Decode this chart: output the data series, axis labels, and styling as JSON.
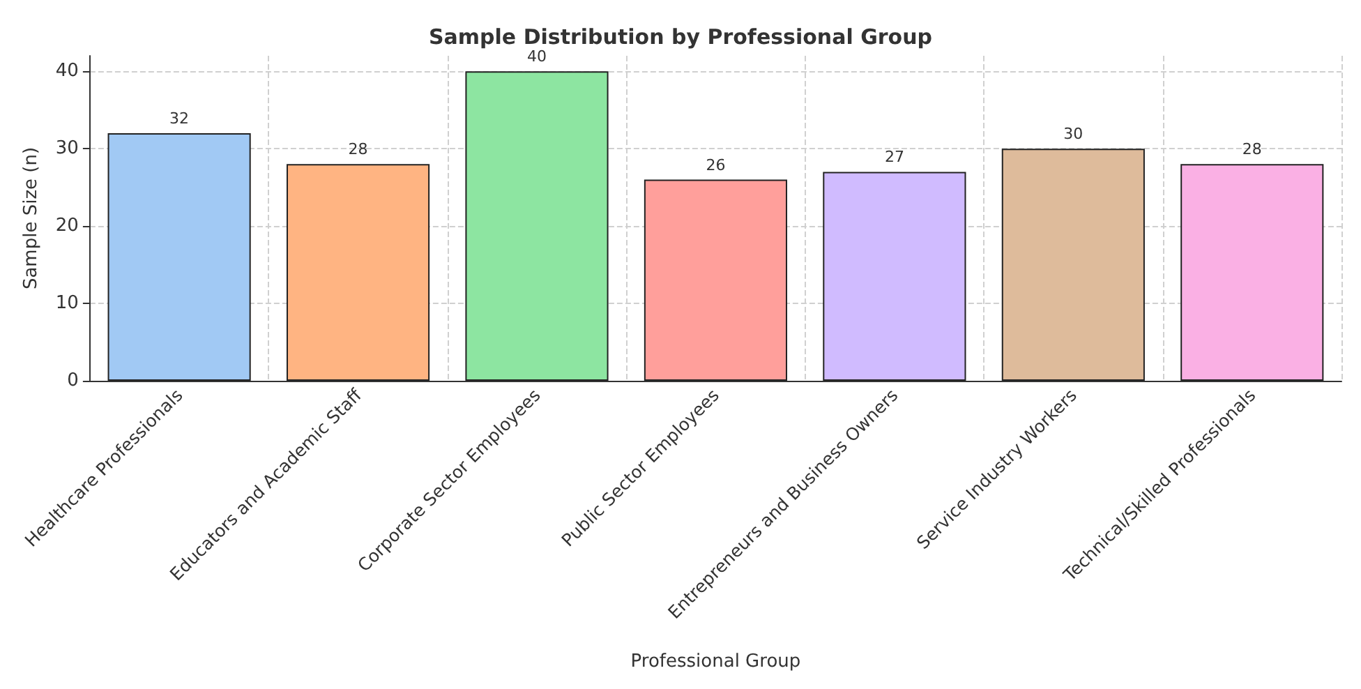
{
  "chart_data": {
    "type": "bar",
    "title": "Sample Distribution by Professional Group",
    "xlabel": "Professional Group",
    "ylabel": "Sample Size (n)",
    "categories": [
      "Healthcare Professionals",
      "Educators and Academic Staff",
      "Corporate Sector Employees",
      "Public Sector Employees",
      "Entrepreneurs and Business Owners",
      "Service Industry Workers",
      "Technical/Skilled Professionals"
    ],
    "values": [
      32,
      28,
      40,
      26,
      27,
      30,
      28
    ],
    "colors": [
      "#a1c9f4",
      "#ffb482",
      "#8de5a1",
      "#ff9f9b",
      "#d0bbff",
      "#debb9b",
      "#fab0e4"
    ],
    "ylim": [
      0,
      42
    ],
    "yticks": [
      0,
      10,
      20,
      30,
      40
    ],
    "grid": true,
    "data_labels": true
  }
}
